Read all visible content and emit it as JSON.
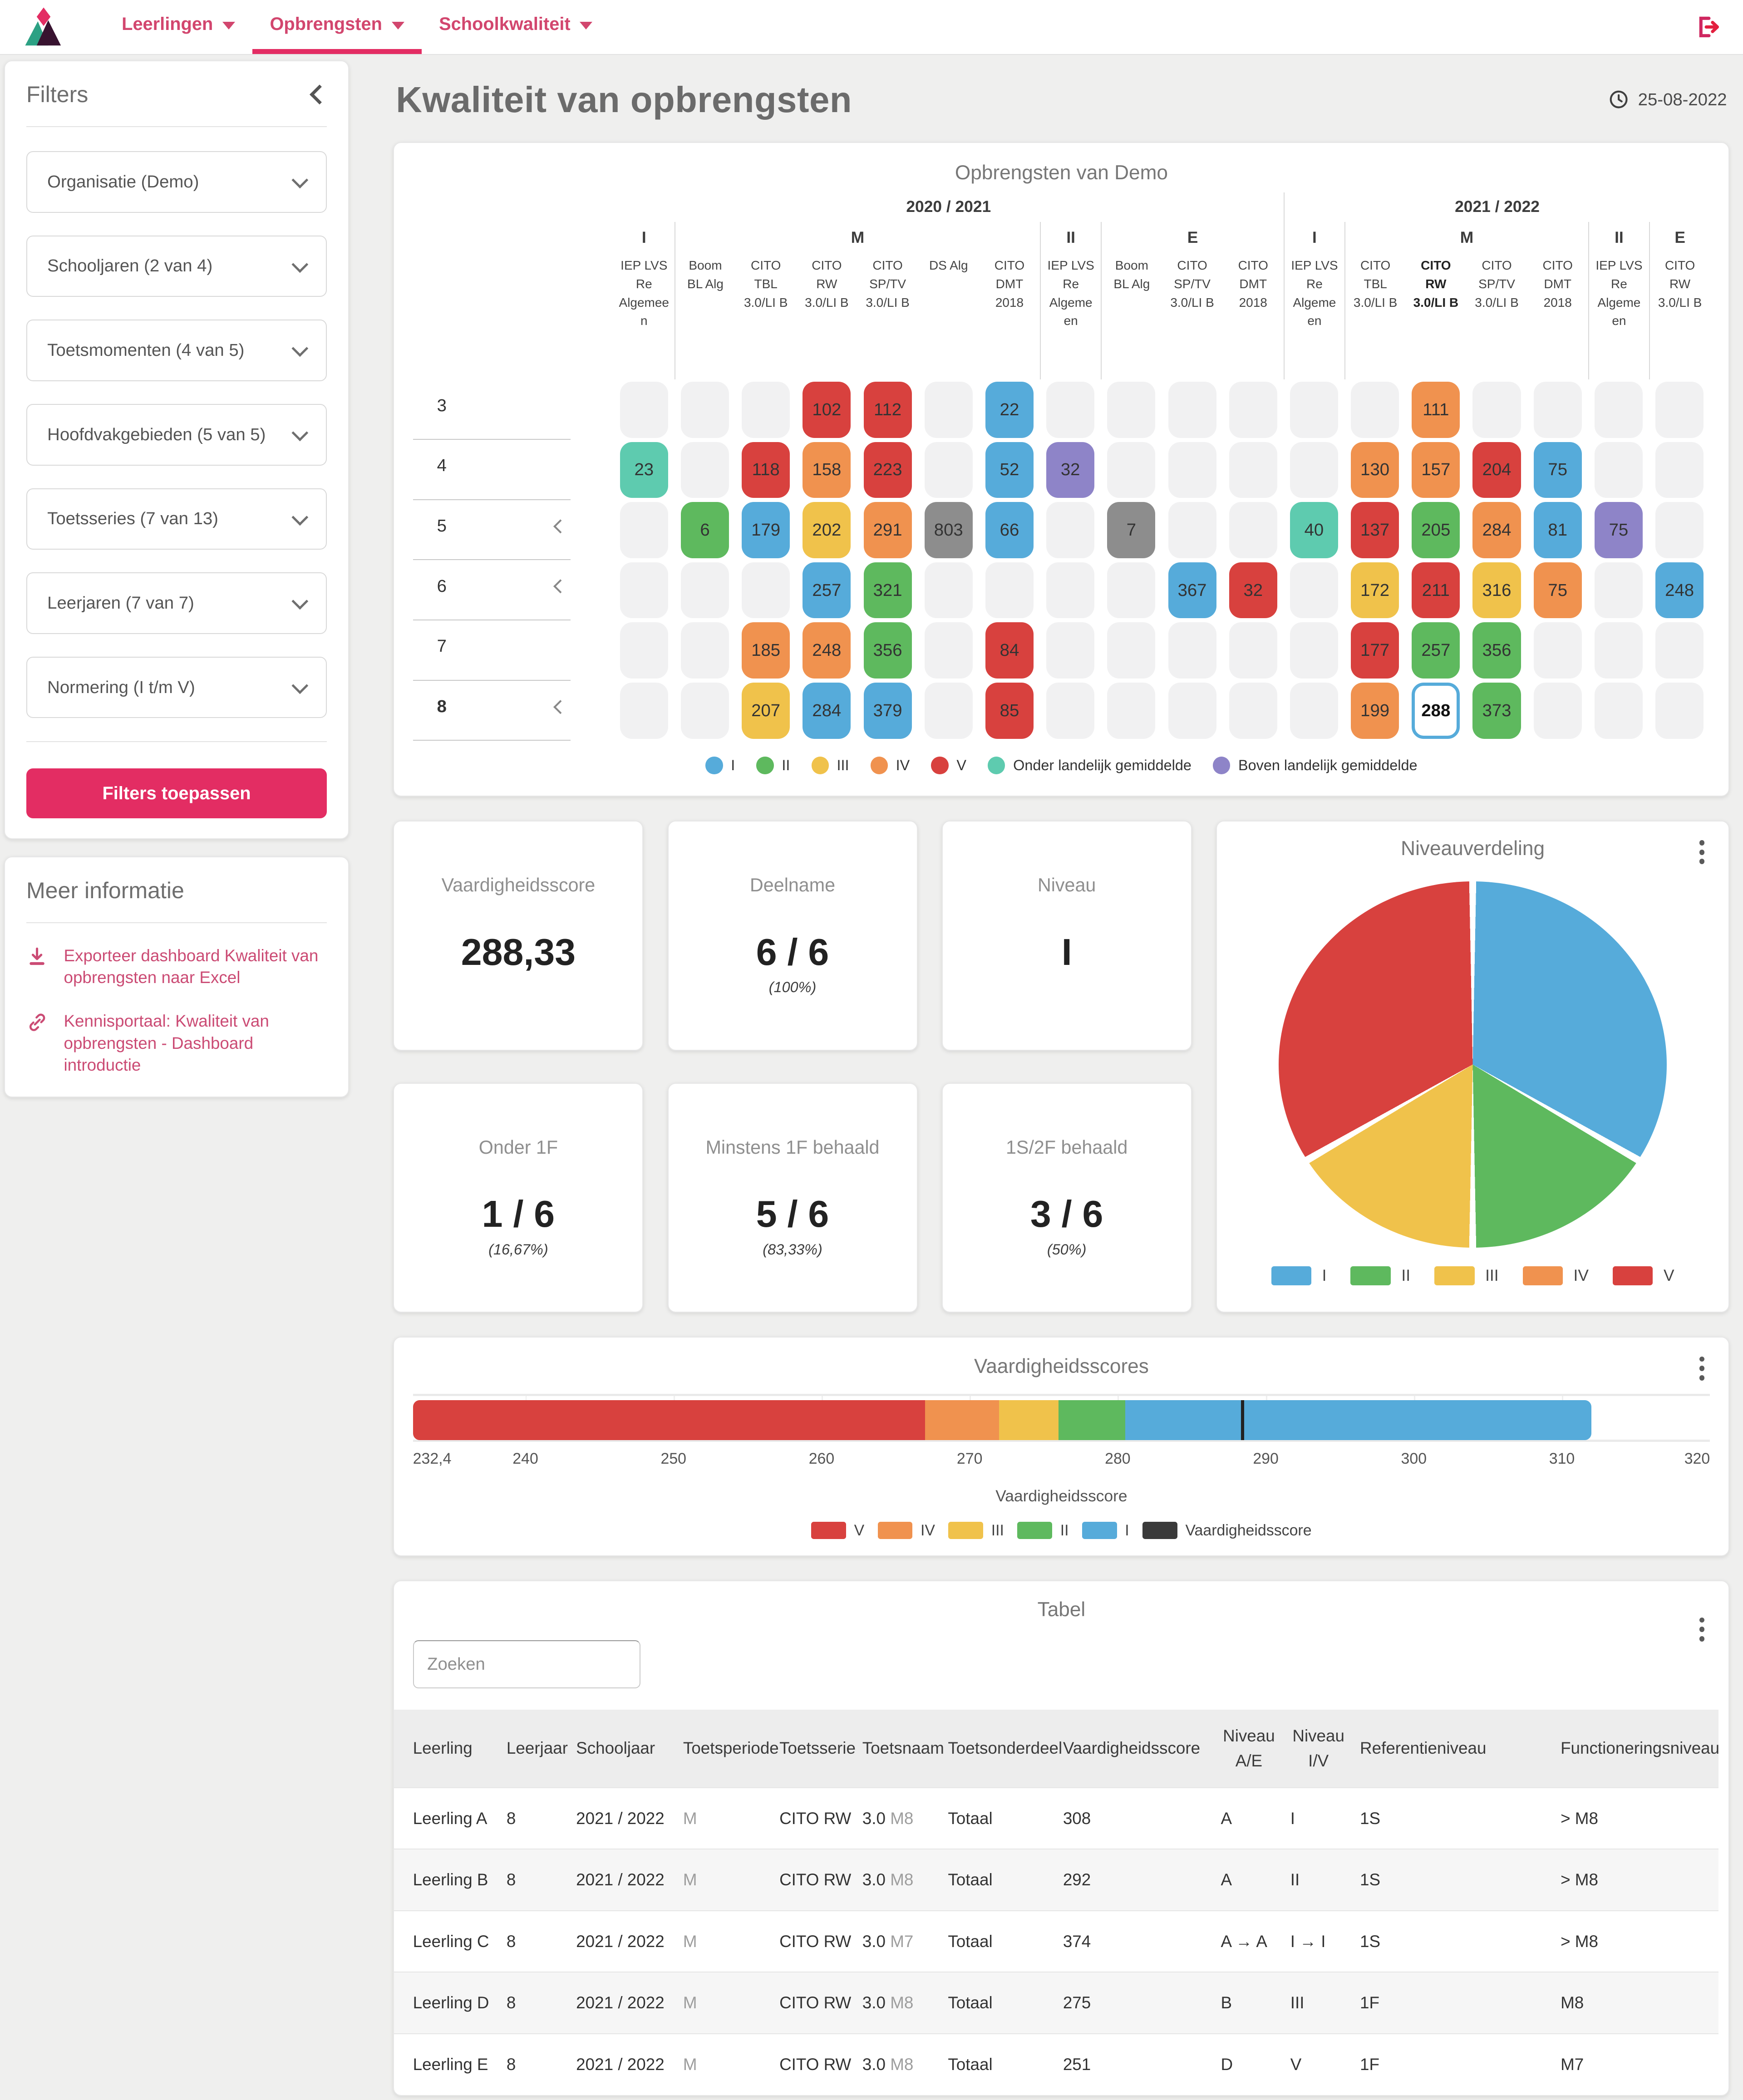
{
  "colors": {
    "I": "#56abda",
    "II": "#5eb95e",
    "III": "#f0c24b",
    "IV": "#f0924f",
    "V": "#d8413e",
    "onder": "#5ecbaf",
    "boven": "#8e84c8",
    "overig": "#8d8d8d",
    "accent": "#e32d63",
    "marker": "#3a3a3a",
    "empty": "#f1f1f2"
  },
  "nav": {
    "items": [
      {
        "label": "Leerlingen"
      },
      {
        "label": "Opbrengsten"
      },
      {
        "label": "Schoolkwaliteit"
      }
    ],
    "active_index": 1
  },
  "page": {
    "title": "Kwaliteit van opbrengsten",
    "date": "25-08-2022"
  },
  "filters": {
    "title": "Filters",
    "dropdowns": [
      "Organisatie (Demo)",
      "Schooljaren (2 van 4)",
      "Toetsmomenten (4 van 5)",
      "Hoofdvakgebieden (5 van 5)",
      "Toetsseries (7 van 13)",
      "Leerjaren (7 van 7)",
      "Normering (I t/m V)"
    ],
    "apply_label": "Filters toepassen"
  },
  "info": {
    "title": "Meer informatie",
    "links": [
      {
        "icon": "download-icon",
        "label": "Exporteer dashboard Kwaliteit van opbrengsten naar Excel"
      },
      {
        "icon": "link-icon",
        "label": "Kennisportaal: Kwaliteit van opbrengsten - Dashboard introductie"
      }
    ]
  },
  "heatmap": {
    "title": "Opbrengsten van Demo",
    "years": [
      {
        "label": "2020 / 2021",
        "cols": 11
      },
      {
        "label": "2021 / 2022",
        "cols": 7
      }
    ],
    "periods": [
      {
        "label": "I",
        "cols": 1
      },
      {
        "label": "M",
        "cols": 6
      },
      {
        "label": "II",
        "cols": 1
      },
      {
        "label": "E",
        "cols": 3
      },
      {
        "label": "I",
        "cols": 1
      },
      {
        "label": "M",
        "cols": 4
      },
      {
        "label": "II",
        "cols": 1
      },
      {
        "label": "E",
        "cols": 1
      }
    ],
    "columns": [
      {
        "label": "IEP LVS Re Algemeen"
      },
      {
        "label": "Boom BL Alg"
      },
      {
        "label": "CITO TBL 3.0/LI B"
      },
      {
        "label": "CITO RW 3.0/LI B"
      },
      {
        "label": "CITO SP/TV 3.0/LI B"
      },
      {
        "label": "DS Alg"
      },
      {
        "label": "CITO DMT 2018"
      },
      {
        "label": "IEP LVS Re Algemeen"
      },
      {
        "label": "Boom BL Alg"
      },
      {
        "label": "CITO SP/TV 3.0/LI B"
      },
      {
        "label": "CITO DMT 2018"
      },
      {
        "label": "IEP LVS Re Algemeen"
      },
      {
        "label": "CITO TBL 3.0/LI B"
      },
      {
        "label": "CITO RW 3.0/LI B",
        "bold": true
      },
      {
        "label": "CITO SP/TV 3.0/LI B"
      },
      {
        "label": "CITO DMT 2018"
      },
      {
        "label": "IEP LVS Re Algemeen"
      },
      {
        "label": "CITO RW 3.0/LI B"
      }
    ],
    "rows": [
      {
        "label": "3",
        "chevron": false,
        "bold": false,
        "cells": [
          {
            "col": 3,
            "value": "102",
            "level": "V"
          },
          {
            "col": 4,
            "value": "112",
            "level": "V"
          },
          {
            "col": 6,
            "value": "22",
            "level": "I"
          },
          {
            "col": 13,
            "value": "111",
            "level": "IV"
          }
        ]
      },
      {
        "label": "4",
        "chevron": false,
        "bold": false,
        "cells": [
          {
            "col": 0,
            "value": "23",
            "level": "onder"
          },
          {
            "col": 2,
            "value": "118",
            "level": "V"
          },
          {
            "col": 3,
            "value": "158",
            "level": "IV"
          },
          {
            "col": 4,
            "value": "223",
            "level": "V"
          },
          {
            "col": 6,
            "value": "52",
            "level": "I"
          },
          {
            "col": 7,
            "value": "32",
            "level": "boven"
          },
          {
            "col": 12,
            "value": "130",
            "level": "IV"
          },
          {
            "col": 13,
            "value": "157",
            "level": "IV"
          },
          {
            "col": 14,
            "value": "204",
            "level": "V"
          },
          {
            "col": 15,
            "value": "75",
            "level": "I"
          }
        ]
      },
      {
        "label": "5",
        "chevron": true,
        "bold": false,
        "cells": [
          {
            "col": 1,
            "value": "6",
            "level": "II"
          },
          {
            "col": 2,
            "value": "179",
            "level": "I"
          },
          {
            "col": 3,
            "value": "202",
            "level": "III"
          },
          {
            "col": 4,
            "value": "291",
            "level": "IV"
          },
          {
            "col": 5,
            "value": "803",
            "level": "overig"
          },
          {
            "col": 6,
            "value": "66",
            "level": "I"
          },
          {
            "col": 8,
            "value": "7",
            "level": "overig"
          },
          {
            "col": 11,
            "value": "40",
            "level": "onder"
          },
          {
            "col": 12,
            "value": "137",
            "level": "V"
          },
          {
            "col": 13,
            "value": "205",
            "level": "II"
          },
          {
            "col": 14,
            "value": "284",
            "level": "IV"
          },
          {
            "col": 15,
            "value": "81",
            "level": "I"
          },
          {
            "col": 16,
            "value": "75",
            "level": "boven"
          }
        ]
      },
      {
        "label": "6",
        "chevron": true,
        "bold": false,
        "cells": [
          {
            "col": 3,
            "value": "257",
            "level": "I"
          },
          {
            "col": 4,
            "value": "321",
            "level": "II"
          },
          {
            "col": 9,
            "value": "367",
            "level": "I"
          },
          {
            "col": 10,
            "value": "32",
            "level": "V"
          },
          {
            "col": 12,
            "value": "172",
            "level": "III"
          },
          {
            "col": 13,
            "value": "211",
            "level": "V"
          },
          {
            "col": 14,
            "value": "316",
            "level": "III"
          },
          {
            "col": 15,
            "value": "75",
            "level": "IV"
          },
          {
            "col": 17,
            "value": "248",
            "level": "I"
          }
        ]
      },
      {
        "label": "7",
        "chevron": false,
        "bold": false,
        "cells": [
          {
            "col": 2,
            "value": "185",
            "level": "IV"
          },
          {
            "col": 3,
            "value": "248",
            "level": "IV"
          },
          {
            "col": 4,
            "value": "356",
            "level": "II"
          },
          {
            "col": 6,
            "value": "84",
            "level": "V"
          },
          {
            "col": 12,
            "value": "177",
            "level": "V"
          },
          {
            "col": 13,
            "value": "257",
            "level": "II"
          },
          {
            "col": 14,
            "value": "356",
            "level": "II"
          }
        ]
      },
      {
        "label": "8",
        "chevron": true,
        "bold": true,
        "cells": [
          {
            "col": 2,
            "value": "207",
            "level": "III"
          },
          {
            "col": 3,
            "value": "284",
            "level": "I"
          },
          {
            "col": 4,
            "value": "379",
            "level": "I"
          },
          {
            "col": 6,
            "value": "85",
            "level": "V"
          },
          {
            "col": 12,
            "value": "199",
            "level": "IV"
          },
          {
            "col": 13,
            "value": "288",
            "level": "selected"
          },
          {
            "col": 14,
            "value": "373",
            "level": "II"
          }
        ]
      }
    ],
    "legend": [
      {
        "label": "I",
        "key": "I"
      },
      {
        "label": "II",
        "key": "II"
      },
      {
        "label": "III",
        "key": "III"
      },
      {
        "label": "IV",
        "key": "IV"
      },
      {
        "label": "V",
        "key": "V"
      },
      {
        "label": "Onder landelijk gemiddelde",
        "key": "onder"
      },
      {
        "label": "Boven landelijk gemiddelde",
        "key": "boven"
      }
    ]
  },
  "kpis": [
    {
      "title": "Vaardigheidsscore",
      "value": "288,33",
      "sub": ""
    },
    {
      "title": "Deelname",
      "value": "6 / 6",
      "sub": "(100%)"
    },
    {
      "title": "Niveau",
      "value": "I",
      "sub": ""
    },
    {
      "title": "Onder 1F",
      "value": "1 / 6",
      "sub": "(16,67%)"
    },
    {
      "title": "Minstens 1F behaald",
      "value": "5 / 6",
      "sub": "(83,33%)"
    },
    {
      "title": "1S/2F behaald",
      "value": "3 / 6",
      "sub": "(50%)"
    }
  ],
  "pie": {
    "title": "Niveauverdeling",
    "chart_data": {
      "type": "pie",
      "categories": [
        "I",
        "II",
        "III",
        "IV",
        "V"
      ],
      "values": [
        33.33,
        16.67,
        16.67,
        0,
        33.33
      ],
      "colors_keys": [
        "I",
        "II",
        "III",
        "IV",
        "V"
      ],
      "legend_position": "bottom"
    }
  },
  "bullet": {
    "title": "Vaardigheidsscores",
    "xlabel": "Vaardigheidsscore",
    "chart_data": {
      "type": "bar",
      "orientation": "horizontal",
      "xlim": [
        232.4,
        320
      ],
      "segments": [
        {
          "key": "V",
          "from": 232.4,
          "to": 267
        },
        {
          "key": "IV",
          "from": 267,
          "to": 272
        },
        {
          "key": "III",
          "from": 272,
          "to": 276
        },
        {
          "key": "II",
          "from": 276,
          "to": 280.5
        },
        {
          "key": "I",
          "from": 280.5,
          "to": 312
        }
      ],
      "marker_value": 288.33,
      "ticks": [
        {
          "label": "232,4",
          "value": 232.4
        },
        {
          "label": "240",
          "value": 240
        },
        {
          "label": "250",
          "value": 250
        },
        {
          "label": "260",
          "value": 260
        },
        {
          "label": "270",
          "value": 270
        },
        {
          "label": "280",
          "value": 280
        },
        {
          "label": "290",
          "value": 290
        },
        {
          "label": "300",
          "value": 300
        },
        {
          "label": "310",
          "value": 310
        },
        {
          "label": "320",
          "value": 320
        }
      ]
    },
    "legend": [
      {
        "label": "V",
        "key": "V"
      },
      {
        "label": "IV",
        "key": "IV"
      },
      {
        "label": "III",
        "key": "III"
      },
      {
        "label": "II",
        "key": "II"
      },
      {
        "label": "I",
        "key": "I"
      },
      {
        "label": "Vaardigheidsscore",
        "key": "marker"
      }
    ]
  },
  "table": {
    "title": "Tabel",
    "search_placeholder": "Zoeken",
    "columns": [
      "Leerling",
      "Leerjaar",
      "Schooljaar",
      "Toetsperiode",
      "Toetsserie",
      "Toetsnaam",
      "Toetsonderdeel",
      "Vaardigheidsscore",
      "Niveau A/E",
      "Niveau I/V",
      "Referentieniveau",
      "Functioneringsniveau"
    ],
    "rows": [
      {
        "leerling": "Leerling A",
        "leerjaar": "8",
        "schooljaar": "2021 / 2022",
        "toetsperiode": "M",
        "toetsserie": "CITO RW",
        "toetsnaam": {
          "base": "3.0",
          "suffix": "M8"
        },
        "toetsonderdeel": "Totaal",
        "vaardigheidsscore": "308",
        "niveau_ae": "A",
        "niveau_iv": "I",
        "referentieniveau": "1S",
        "functioneringsniveau": "> M8"
      },
      {
        "leerling": "Leerling B",
        "leerjaar": "8",
        "schooljaar": "2021 / 2022",
        "toetsperiode": "M",
        "toetsserie": "CITO RW",
        "toetsnaam": {
          "base": "3.0",
          "suffix": "M8"
        },
        "toetsonderdeel": "Totaal",
        "vaardigheidsscore": "292",
        "niveau_ae": "A",
        "niveau_iv": "II",
        "referentieniveau": "1S",
        "functioneringsniveau": "> M8"
      },
      {
        "leerling": "Leerling C",
        "leerjaar": "8",
        "schooljaar": "2021 / 2022",
        "toetsperiode": "M",
        "toetsserie": "CITO RW",
        "toetsnaam": {
          "base": "3.0",
          "suffix": "M7"
        },
        "toetsonderdeel": "Totaal",
        "vaardigheidsscore": "374",
        "niveau_ae": "A → A",
        "niveau_iv": "I → I",
        "referentieniveau": "1S",
        "functioneringsniveau": "> M8"
      },
      {
        "leerling": "Leerling D",
        "leerjaar": "8",
        "schooljaar": "2021 / 2022",
        "toetsperiode": "M",
        "toetsserie": "CITO RW",
        "toetsnaam": {
          "base": "3.0",
          "suffix": "M8"
        },
        "toetsonderdeel": "Totaal",
        "vaardigheidsscore": "275",
        "niveau_ae": "B",
        "niveau_iv": "III",
        "referentieniveau": "1F",
        "functioneringsniveau": "M8"
      },
      {
        "leerling": "Leerling E",
        "leerjaar": "8",
        "schooljaar": "2021 / 2022",
        "toetsperiode": "M",
        "toetsserie": "CITO RW",
        "toetsnaam": {
          "base": "3.0",
          "suffix": "M8"
        },
        "toetsonderdeel": "Totaal",
        "vaardigheidsscore": "251",
        "niveau_ae": "D",
        "niveau_iv": "V",
        "referentieniveau": "1F",
        "functioneringsniveau": "M7"
      }
    ]
  }
}
